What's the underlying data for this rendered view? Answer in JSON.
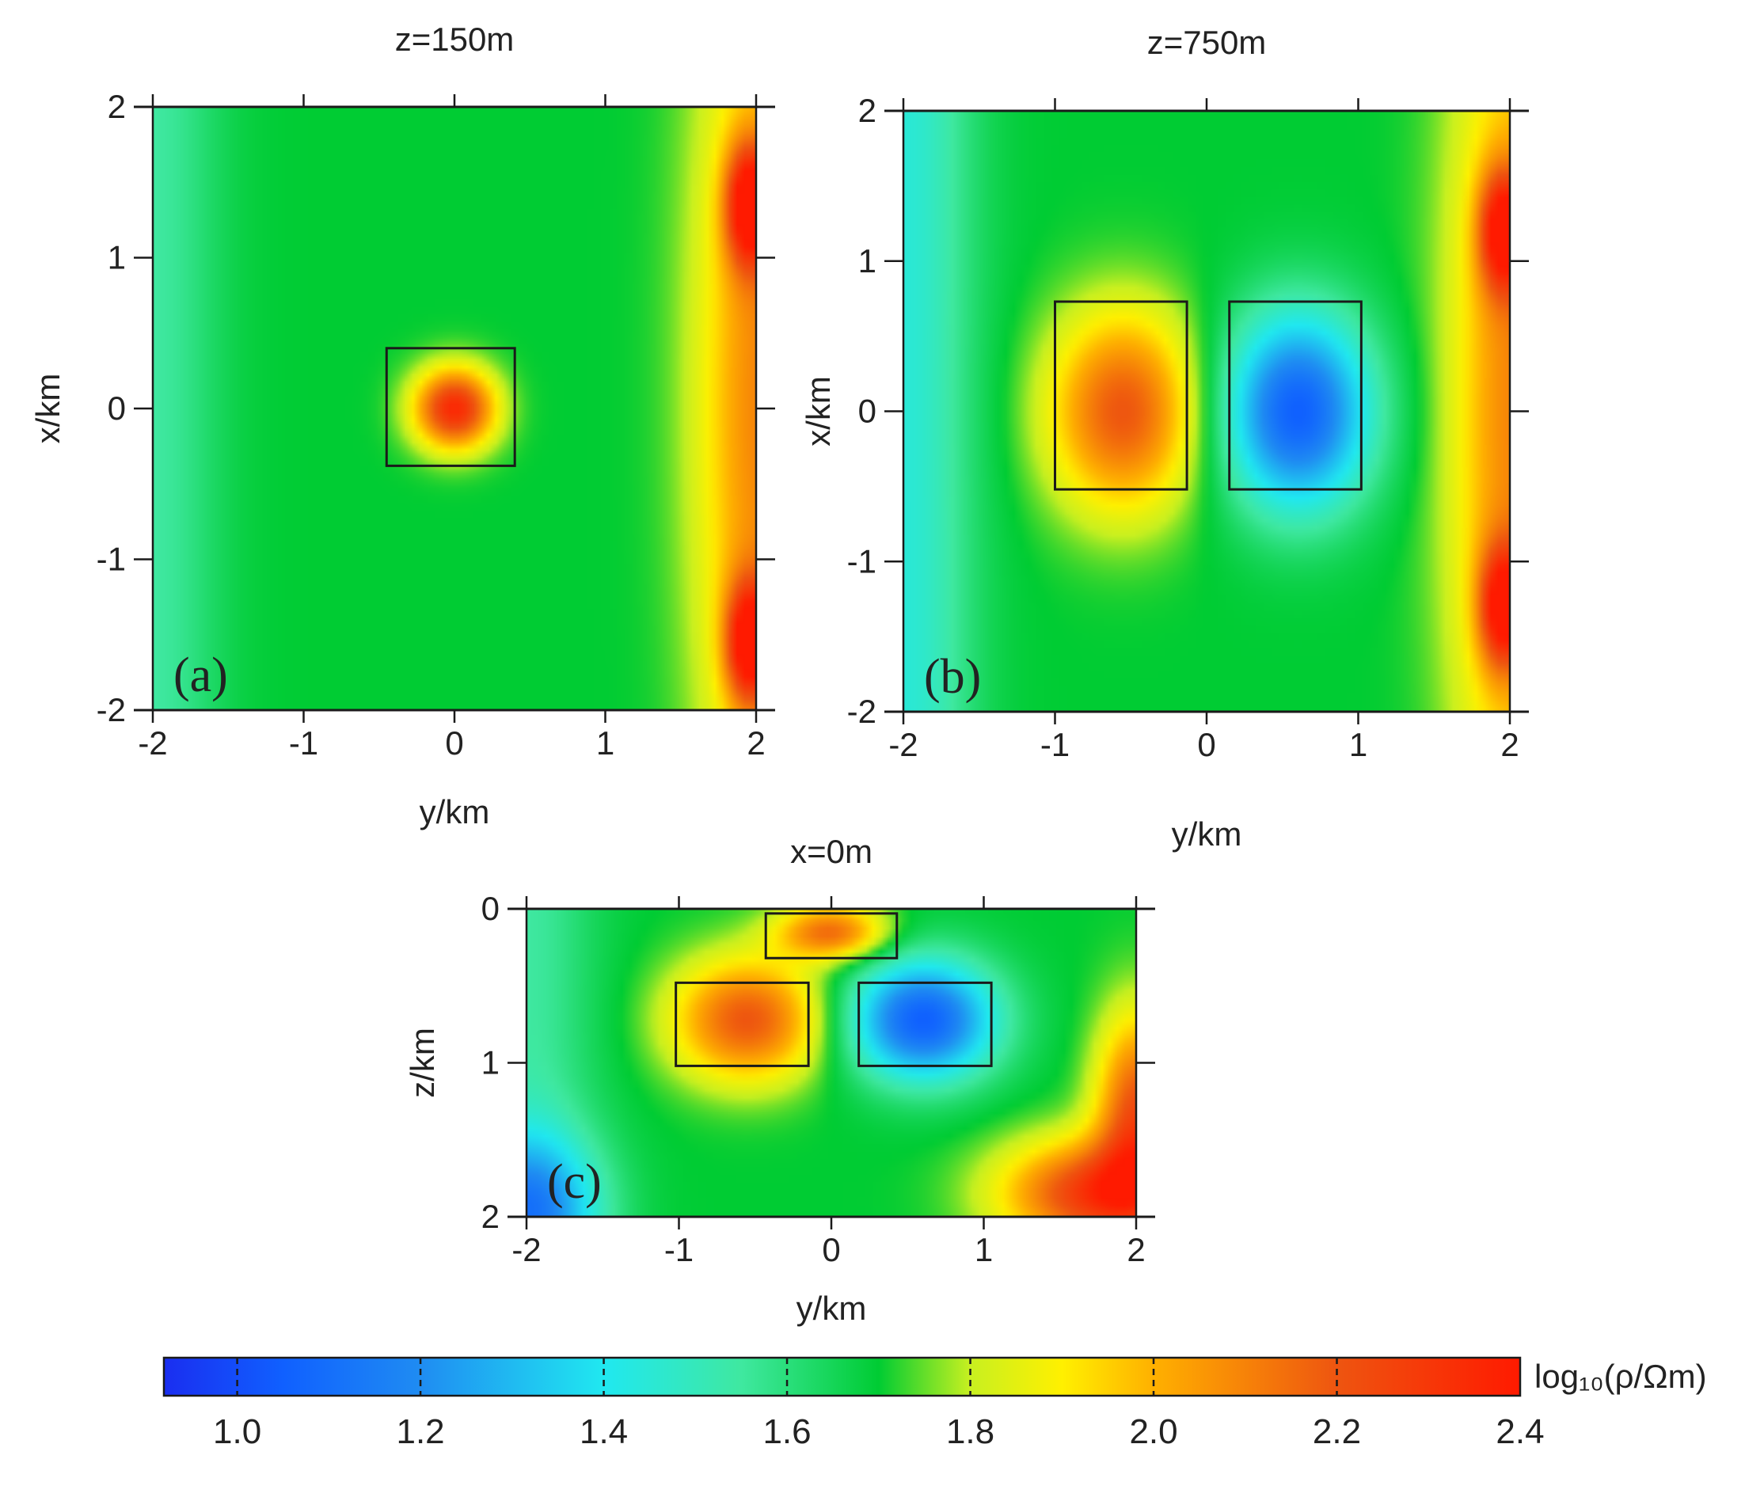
{
  "chart_data": [
    {
      "type": "heatmap",
      "panel_label": "(a)",
      "title": "z=150m",
      "xlabel": "y/km",
      "ylabel": "x/km",
      "xlim": [
        -2,
        2
      ],
      "ylim": [
        -2,
        2
      ],
      "xticks": [
        -2,
        -1,
        0,
        1,
        2
      ],
      "yticks": [
        -2,
        -1,
        0,
        1,
        2
      ],
      "xtick_labels": [
        "-2",
        "-1",
        "0",
        "1",
        "2"
      ],
      "ytick_labels": [
        "-2",
        "-1",
        "0",
        "1",
        "2"
      ],
      "background_log10_rho": 1.7,
      "anomalies": [
        {
          "shape": "gaussian",
          "center": [
            0,
            0
          ],
          "radius": [
            0.3,
            0.3
          ],
          "peak_log10_rho": 2.35
        }
      ],
      "edge_effects": [
        {
          "center": [
            1.95,
            1.35
          ],
          "radius": [
            0.17,
            0.45
          ],
          "peak_log10_rho": 2.3
        },
        {
          "center": [
            1.95,
            -1.55
          ],
          "radius": [
            0.17,
            0.45
          ],
          "peak_log10_rho": 2.3
        },
        {
          "center": [
            2.05,
            0
          ],
          "radius": [
            0.5,
            3.5
          ],
          "peak_log10_rho": 2.1
        }
      ],
      "left_edge_log10_rho": 1.55,
      "boxes": [
        {
          "y": [
            -0.45,
            0.4
          ],
          "x": [
            -0.38,
            0.4
          ]
        }
      ]
    },
    {
      "type": "heatmap",
      "panel_label": "(b)",
      "title": "z=750m",
      "xlabel": "y/km",
      "ylabel": "x/km",
      "xlim": [
        -2,
        2
      ],
      "ylim": [
        -2,
        2
      ],
      "xticks": [
        -2,
        -1,
        0,
        1,
        2
      ],
      "yticks": [
        -2,
        -1,
        0,
        1,
        2
      ],
      "xtick_labels": [
        "-2",
        "-1",
        "0",
        "1",
        "2"
      ],
      "ytick_labels": [
        "-2",
        "-1",
        "0",
        "1",
        "2"
      ],
      "background_log10_rho": 1.7,
      "anomalies": [
        {
          "shape": "gaussian",
          "center": [
            -0.55,
            0
          ],
          "radius": [
            0.55,
            0.75
          ],
          "peak_log10_rho": 2.2
        },
        {
          "shape": "gaussian",
          "center": [
            0.6,
            0
          ],
          "radius": [
            0.55,
            0.75
          ],
          "peak_log10_rho": 1.05
        }
      ],
      "edge_effects": [
        {
          "center": [
            1.95,
            1.2
          ],
          "radius": [
            0.17,
            0.45
          ],
          "peak_log10_rho": 2.25
        },
        {
          "center": [
            1.95,
            -1.3
          ],
          "radius": [
            0.17,
            0.45
          ],
          "peak_log10_rho": 2.25
        },
        {
          "center": [
            2.05,
            0
          ],
          "radius": [
            0.5,
            3.5
          ],
          "peak_log10_rho": 2.1
        }
      ],
      "left_edge_log10_rho": 1.45,
      "boxes": [
        {
          "y": [
            -1.0,
            -0.13
          ],
          "x": [
            -0.52,
            0.73
          ]
        },
        {
          "y": [
            0.15,
            1.02
          ],
          "x": [
            -0.52,
            0.73
          ]
        }
      ]
    },
    {
      "type": "heatmap",
      "panel_label": "(c)",
      "title": "x=0m",
      "xlabel": "y/km",
      "ylabel": "z/km",
      "xlim": [
        -2,
        2
      ],
      "ylim": [
        0,
        2
      ],
      "xticks": [
        -2,
        -1,
        0,
        1,
        2
      ],
      "yticks": [
        0,
        1,
        2
      ],
      "xtick_labels": [
        "-2",
        "-1",
        "0",
        "1",
        "2"
      ],
      "ytick_labels": [
        "0",
        "1",
        "2"
      ],
      "background_log10_rho": 1.7,
      "anomalies": [
        {
          "shape": "gaussian",
          "center": [
            0,
            0.15
          ],
          "radius": [
            0.4,
            0.2
          ],
          "peak_log10_rho": 2.15
        },
        {
          "shape": "gaussian",
          "center": [
            -0.55,
            0.72
          ],
          "radius": [
            0.55,
            0.45
          ],
          "peak_log10_rho": 2.2
        },
        {
          "shape": "gaussian",
          "center": [
            0.6,
            0.72
          ],
          "radius": [
            0.55,
            0.45
          ],
          "peak_log10_rho": 1.05
        },
        {
          "shape": "gaussian",
          "center": [
            1.75,
            1.85
          ],
          "radius": [
            0.7,
            0.4
          ],
          "peak_log10_rho": 2.3
        },
        {
          "shape": "gaussian",
          "center": [
            2.0,
            1.3
          ],
          "radius": [
            0.3,
            0.7
          ],
          "peak_log10_rho": 2.2
        },
        {
          "shape": "gaussian",
          "center": [
            -2.0,
            1.95
          ],
          "radius": [
            0.55,
            0.55
          ],
          "peak_log10_rho": 1.25
        }
      ],
      "edge_effects": [],
      "left_edge_log10_rho": 1.55,
      "boxes": [
        {
          "y": [
            -0.43,
            0.43
          ],
          "z": [
            0.03,
            0.32
          ]
        },
        {
          "y": [
            -1.02,
            -0.15
          ],
          "z": [
            0.48,
            1.02
          ]
        },
        {
          "y": [
            0.18,
            1.05
          ],
          "z": [
            0.48,
            1.02
          ]
        }
      ]
    }
  ],
  "colorbar": {
    "label": "log₁₀(ρ/Ωm)",
    "range": [
      0.92,
      2.4
    ],
    "ticks": [
      1.0,
      1.2,
      1.4,
      1.6,
      1.8,
      2.0,
      2.2,
      2.4
    ],
    "tick_labels": [
      "1.0",
      "1.2",
      "1.4",
      "1.6",
      "1.8",
      "2.0",
      "2.2",
      "2.4"
    ],
    "colormap_stops": [
      {
        "v": 0.92,
        "color": "#1a2ef0"
      },
      {
        "v": 1.05,
        "color": "#1060ff"
      },
      {
        "v": 1.2,
        "color": "#1f8cf2"
      },
      {
        "v": 1.4,
        "color": "#20e8f0"
      },
      {
        "v": 1.55,
        "color": "#3fe8a0"
      },
      {
        "v": 1.7,
        "color": "#00cc33"
      },
      {
        "v": 1.8,
        "color": "#c8f020"
      },
      {
        "v": 1.9,
        "color": "#fff000"
      },
      {
        "v": 2.0,
        "color": "#ffb000"
      },
      {
        "v": 2.2,
        "color": "#ee5510"
      },
      {
        "v": 2.4,
        "color": "#ff1a00"
      }
    ]
  }
}
